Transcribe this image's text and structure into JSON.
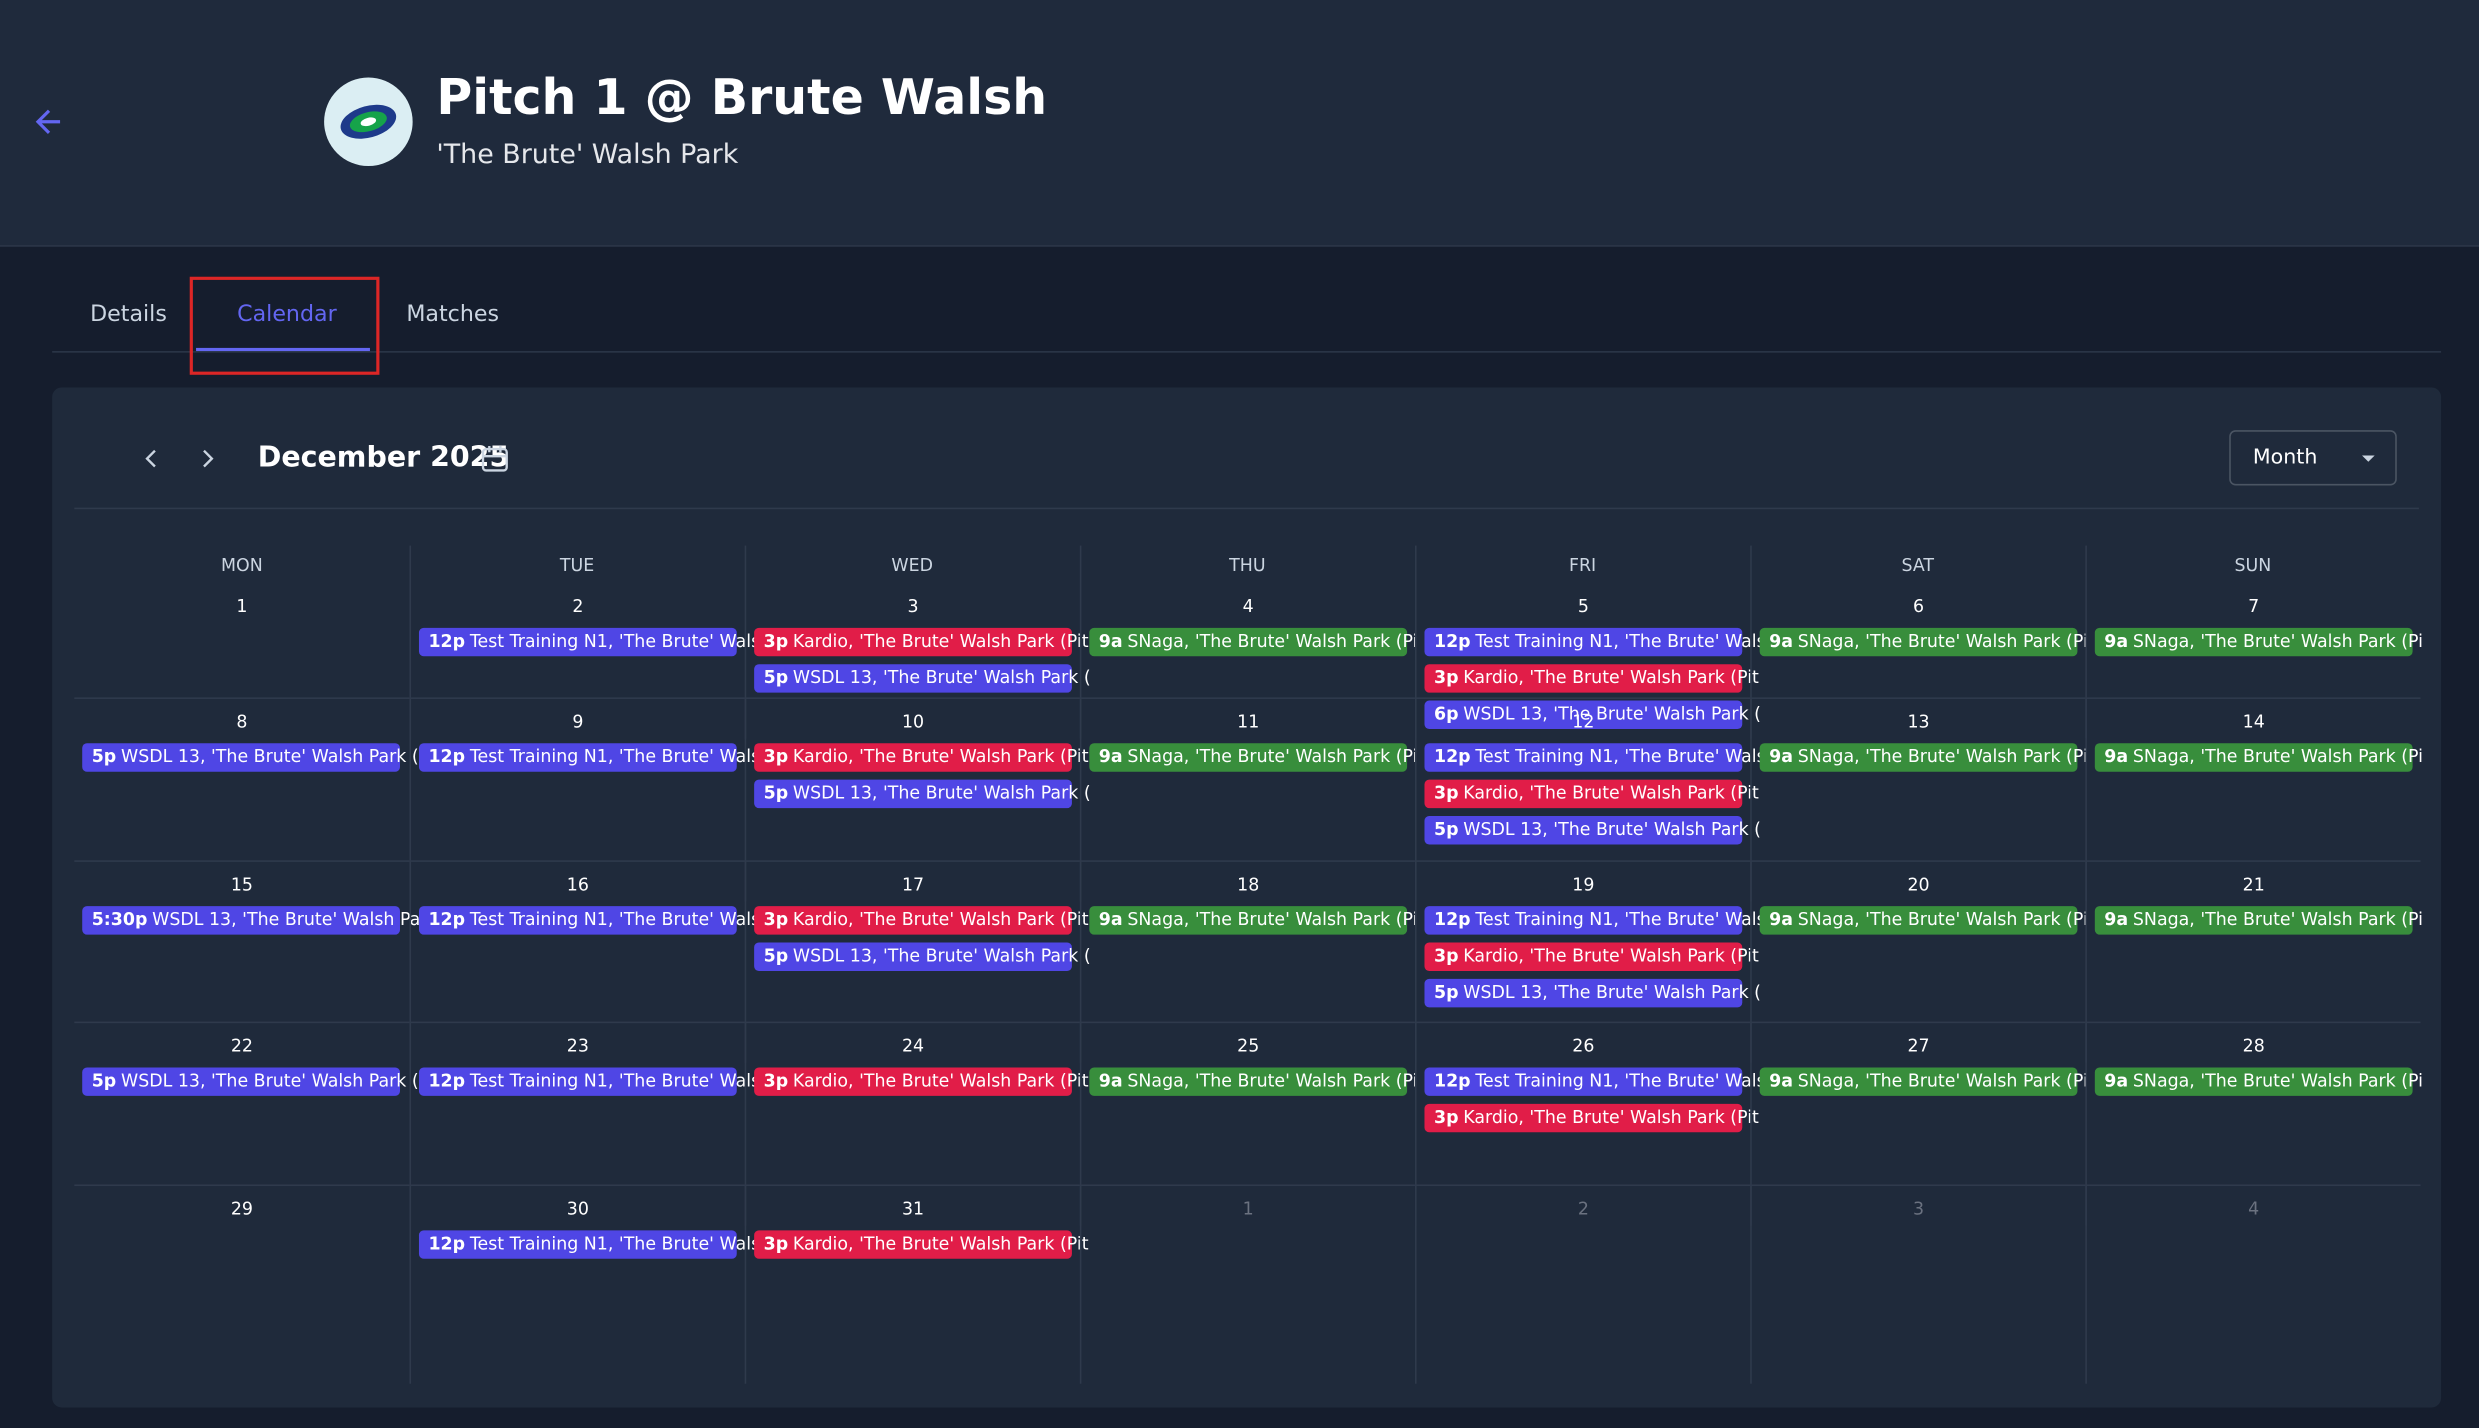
{
  "header": {
    "title": "Pitch 1 @ Brute Walsh",
    "subtitle": "'The Brute' Walsh Park"
  },
  "tabs": [
    "Details",
    "Calendar",
    "Matches"
  ],
  "calendar": {
    "month": "December 2025",
    "view": "Month",
    "weekdays": [
      "MON",
      "TUE",
      "WED",
      "THU",
      "FRI",
      "SAT",
      "SUN"
    ],
    "weeks": [
      {
        "days": [
          {
            "day": 1,
            "events": []
          },
          {
            "day": 2,
            "events": [
              {
                "time": "12p",
                "title": "Test Training N1, 'The Brute' Wals",
                "color": "#4f46e5"
              }
            ]
          },
          {
            "day": 3,
            "events": [
              {
                "time": "3p",
                "title": "Kardio, 'The Brute' Walsh Park (Pit",
                "color": "#e11d48"
              },
              {
                "time": "5p",
                "title": "WSDL 13, 'The Brute' Walsh Park (",
                "color": "#4f46e5"
              }
            ]
          },
          {
            "day": 4,
            "events": [
              {
                "time": "9a",
                "title": "SNaga, 'The Brute' Walsh Park (Pi",
                "color": "#388e3c"
              }
            ]
          },
          {
            "day": 5,
            "events": [
              {
                "time": "12p",
                "title": "Test Training N1, 'The Brute' Wals",
                "color": "#4f46e5"
              },
              {
                "time": "3p",
                "title": "Kardio, 'The Brute' Walsh Park (Pit",
                "color": "#e11d48"
              },
              {
                "time": "6p",
                "title": "WSDL 13, 'The Brute' Walsh Park (",
                "color": "#4f46e5"
              }
            ]
          },
          {
            "day": 6,
            "events": [
              {
                "time": "9a",
                "title": "SNaga, 'The Brute' Walsh Park (Pi",
                "color": "#388e3c"
              }
            ]
          },
          {
            "day": 7,
            "events": [
              {
                "time": "9a",
                "title": "SNaga, 'The Brute' Walsh Park (Pi",
                "color": "#388e3c"
              }
            ]
          }
        ]
      },
      {
        "days": [
          {
            "day": 8,
            "events": [
              {
                "time": "5p",
                "title": "WSDL 13, 'The Brute' Walsh Park (",
                "color": "#4f46e5"
              }
            ]
          },
          {
            "day": 9,
            "events": [
              {
                "time": "12p",
                "title": "Test Training N1, 'The Brute' Wals",
                "color": "#4f46e5"
              }
            ]
          },
          {
            "day": 10,
            "events": [
              {
                "time": "3p",
                "title": "Kardio, 'The Brute' Walsh Park (Pit",
                "color": "#e11d48"
              },
              {
                "time": "5p",
                "title": "WSDL 13, 'The Brute' Walsh Park (",
                "color": "#4f46e5"
              }
            ]
          },
          {
            "day": 11,
            "events": [
              {
                "time": "9a",
                "title": "SNaga, 'The Brute' Walsh Park (Pi",
                "color": "#388e3c"
              }
            ]
          },
          {
            "day": 12,
            "events": [
              {
                "time": "12p",
                "title": "Test Training N1, 'The Brute' Wals",
                "color": "#4f46e5"
              },
              {
                "time": "3p",
                "title": "Kardio, 'The Brute' Walsh Park (Pit",
                "color": "#e11d48"
              },
              {
                "time": "5p",
                "title": "WSDL 13, 'The Brute' Walsh Park (",
                "color": "#4f46e5"
              }
            ]
          },
          {
            "day": 13,
            "events": [
              {
                "time": "9a",
                "title": "SNaga, 'The Brute' Walsh Park (Pi",
                "color": "#388e3c"
              }
            ]
          },
          {
            "day": 14,
            "events": [
              {
                "time": "9a",
                "title": "SNaga, 'The Brute' Walsh Park (Pi",
                "color": "#388e3c"
              }
            ]
          }
        ]
      },
      {
        "days": [
          {
            "day": 15,
            "events": [
              {
                "time": "5:30p",
                "title": "WSDL 13, 'The Brute' Walsh Pa",
                "color": "#4f46e5"
              }
            ]
          },
          {
            "day": 16,
            "events": [
              {
                "time": "12p",
                "title": "Test Training N1, 'The Brute' Wals",
                "color": "#4f46e5"
              }
            ]
          },
          {
            "day": 17,
            "events": [
              {
                "time": "3p",
                "title": "Kardio, 'The Brute' Walsh Park (Pit",
                "color": "#e11d48"
              },
              {
                "time": "5p",
                "title": "WSDL 13, 'The Brute' Walsh Park (",
                "color": "#4f46e5"
              }
            ]
          },
          {
            "day": 18,
            "events": [
              {
                "time": "9a",
                "title": "SNaga, 'The Brute' Walsh Park (Pi",
                "color": "#388e3c"
              }
            ]
          },
          {
            "day": 19,
            "events": [
              {
                "time": "12p",
                "title": "Test Training N1, 'The Brute' Wals",
                "color": "#4f46e5"
              },
              {
                "time": "3p",
                "title": "Kardio, 'The Brute' Walsh Park (Pit",
                "color": "#e11d48"
              },
              {
                "time": "5p",
                "title": "WSDL 13, 'The Brute' Walsh Park (",
                "color": "#4f46e5"
              }
            ]
          },
          {
            "day": 20,
            "events": [
              {
                "time": "9a",
                "title": "SNaga, 'The Brute' Walsh Park (Pi",
                "color": "#388e3c"
              }
            ]
          },
          {
            "day": 21,
            "events": [
              {
                "time": "9a",
                "title": "SNaga, 'The Brute' Walsh Park (Pi",
                "color": "#388e3c"
              }
            ]
          }
        ]
      },
      {
        "days": [
          {
            "day": 22,
            "events": [
              {
                "time": "5p",
                "title": "WSDL 13, 'The Brute' Walsh Park (",
                "color": "#4f46e5"
              }
            ]
          },
          {
            "day": 23,
            "events": [
              {
                "time": "12p",
                "title": "Test Training N1, 'The Brute' Wals",
                "color": "#4f46e5"
              }
            ]
          },
          {
            "day": 24,
            "events": [
              {
                "time": "3p",
                "title": "Kardio, 'The Brute' Walsh Park (Pit",
                "color": "#e11d48"
              }
            ]
          },
          {
            "day": 25,
            "events": [
              {
                "time": "9a",
                "title": "SNaga, 'The Brute' Walsh Park (Pi",
                "color": "#388e3c"
              }
            ]
          },
          {
            "day": 26,
            "events": [
              {
                "time": "12p",
                "title": "Test Training N1, 'The Brute' Wals",
                "color": "#4f46e5"
              },
              {
                "time": "3p",
                "title": "Kardio, 'The Brute' Walsh Park (Pit",
                "color": "#e11d48"
              }
            ]
          },
          {
            "day": 27,
            "events": [
              {
                "time": "9a",
                "title": "SNaga, 'The Brute' Walsh Park (Pi",
                "color": "#388e3c"
              }
            ]
          },
          {
            "day": 28,
            "events": [
              {
                "time": "9a",
                "title": "SNaga, 'The Brute' Walsh Park (Pi",
                "color": "#388e3c"
              }
            ]
          }
        ]
      },
      {
        "days": [
          {
            "day": 29,
            "events": []
          },
          {
            "day": 30,
            "events": [
              {
                "time": "12p",
                "title": "Test Training N1, 'The Brute' Wals",
                "color": "#4f46e5"
              }
            ]
          },
          {
            "day": 31,
            "events": [
              {
                "time": "3p",
                "title": "Kardio, 'The Brute' Walsh Park (Pit",
                "color": "#e11d48"
              }
            ]
          },
          {
            "day": 1,
            "outside": true,
            "events": []
          },
          {
            "day": 2,
            "outside": true,
            "events": []
          },
          {
            "day": 3,
            "outside": true,
            "events": []
          },
          {
            "day": 4,
            "outside": true,
            "events": []
          }
        ]
      }
    ]
  }
}
